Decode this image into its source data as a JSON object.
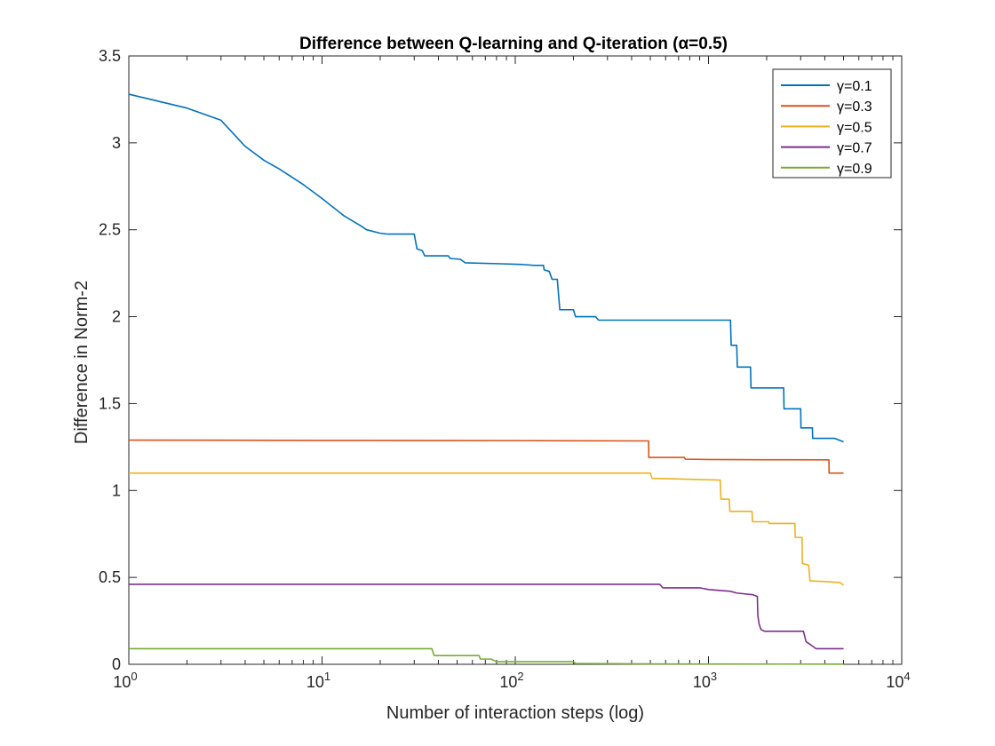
{
  "chart_data": {
    "type": "line",
    "title": "Difference between Q-learning and Q-iteration (α=0.5)",
    "xlabel": "Number of interaction steps (log)",
    "ylabel": "Difference in Norm-2",
    "xscale": "log",
    "xlim": [
      1,
      10000
    ],
    "ylim": [
      0,
      3.5
    ],
    "xticks": [
      {
        "value": 1,
        "base": "10",
        "exp": "0"
      },
      {
        "value": 10,
        "base": "10",
        "exp": "1"
      },
      {
        "value": 100,
        "base": "10",
        "exp": "2"
      },
      {
        "value": 1000,
        "base": "10",
        "exp": "3"
      },
      {
        "value": 10000,
        "base": "10",
        "exp": "4"
      }
    ],
    "yticks": [
      {
        "value": 0,
        "label": "0"
      },
      {
        "value": 0.5,
        "label": "0.5"
      },
      {
        "value": 1,
        "label": "1"
      },
      {
        "value": 1.5,
        "label": "1.5"
      },
      {
        "value": 2,
        "label": "2"
      },
      {
        "value": 2.5,
        "label": "2.5"
      },
      {
        "value": 3,
        "label": "3"
      },
      {
        "value": 3.5,
        "label": "3.5"
      }
    ],
    "grid": false,
    "box": true,
    "legend_position": "top-right",
    "series": [
      {
        "name": "γ=0.1",
        "color": "#0072BD",
        "step": false,
        "points": [
          [
            1,
            3.28
          ],
          [
            2,
            3.2
          ],
          [
            3,
            3.13
          ],
          [
            4,
            2.98
          ],
          [
            5,
            2.9
          ],
          [
            6,
            2.85
          ],
          [
            8,
            2.76
          ],
          [
            10,
            2.68
          ],
          [
            13,
            2.58
          ],
          [
            16,
            2.52
          ],
          [
            17,
            2.5
          ],
          [
            20,
            2.48
          ],
          [
            22,
            2.475
          ],
          [
            30,
            2.475
          ],
          [
            31,
            2.39
          ],
          [
            33,
            2.38
          ],
          [
            34,
            2.35
          ],
          [
            45,
            2.35
          ],
          [
            46,
            2.335
          ],
          [
            52,
            2.33
          ],
          [
            55,
            2.31
          ],
          [
            80,
            2.305
          ],
          [
            110,
            2.3
          ],
          [
            125,
            2.295
          ],
          [
            140,
            2.295
          ],
          [
            141,
            2.27
          ],
          [
            150,
            2.26
          ],
          [
            155,
            2.215
          ],
          [
            165,
            2.215
          ],
          [
            170,
            2.04
          ],
          [
            200,
            2.04
          ],
          [
            205,
            2.0
          ],
          [
            260,
            2.0
          ],
          [
            270,
            1.98
          ],
          [
            1300,
            1.98
          ],
          [
            1310,
            1.835
          ],
          [
            1400,
            1.835
          ],
          [
            1410,
            1.71
          ],
          [
            1650,
            1.71
          ],
          [
            1660,
            1.59
          ],
          [
            2450,
            1.59
          ],
          [
            2460,
            1.47
          ],
          [
            3000,
            1.47
          ],
          [
            3010,
            1.36
          ],
          [
            3450,
            1.36
          ],
          [
            3460,
            1.3
          ],
          [
            4500,
            1.3
          ],
          [
            5000,
            1.28
          ]
        ]
      },
      {
        "name": "γ=0.3",
        "color": "#D95319",
        "step": false,
        "points": [
          [
            1,
            1.29
          ],
          [
            10,
            1.288
          ],
          [
            100,
            1.287
          ],
          [
            490,
            1.285
          ],
          [
            491,
            1.19
          ],
          [
            750,
            1.19
          ],
          [
            760,
            1.18
          ],
          [
            1000,
            1.178
          ],
          [
            2000,
            1.177
          ],
          [
            4200,
            1.176
          ],
          [
            4210,
            1.1
          ],
          [
            5000,
            1.1
          ]
        ]
      },
      {
        "name": "γ=0.5",
        "color": "#EDB120",
        "step": false,
        "points": [
          [
            1,
            1.1
          ],
          [
            100,
            1.1
          ],
          [
            500,
            1.1
          ],
          [
            510,
            1.07
          ],
          [
            1150,
            1.06
          ],
          [
            1160,
            0.95
          ],
          [
            1280,
            0.95
          ],
          [
            1290,
            0.88
          ],
          [
            1680,
            0.88
          ],
          [
            1690,
            0.82
          ],
          [
            2050,
            0.82
          ],
          [
            2060,
            0.81
          ],
          [
            2800,
            0.81
          ],
          [
            2810,
            0.73
          ],
          [
            3050,
            0.73
          ],
          [
            3060,
            0.58
          ],
          [
            3300,
            0.57
          ],
          [
            3350,
            0.48
          ],
          [
            4200,
            0.475
          ],
          [
            4800,
            0.47
          ],
          [
            5000,
            0.455
          ]
        ]
      },
      {
        "name": "γ=0.7",
        "color": "#7E2F8E",
        "step": false,
        "points": [
          [
            1,
            0.46
          ],
          [
            100,
            0.46
          ],
          [
            560,
            0.46
          ],
          [
            580,
            0.44
          ],
          [
            900,
            0.44
          ],
          [
            1000,
            0.43
          ],
          [
            1300,
            0.42
          ],
          [
            1400,
            0.41
          ],
          [
            1700,
            0.4
          ],
          [
            1790,
            0.39
          ],
          [
            1800,
            0.28
          ],
          [
            1830,
            0.23
          ],
          [
            1870,
            0.2
          ],
          [
            1950,
            0.19
          ],
          [
            3100,
            0.19
          ],
          [
            3200,
            0.13
          ],
          [
            3400,
            0.11
          ],
          [
            3600,
            0.09
          ],
          [
            5000,
            0.09
          ]
        ]
      },
      {
        "name": "γ=0.9",
        "color": "#77AC30",
        "step": false,
        "points": [
          [
            1,
            0.09
          ],
          [
            37,
            0.09
          ],
          [
            38,
            0.05
          ],
          [
            65,
            0.05
          ],
          [
            66,
            0.03
          ],
          [
            75,
            0.03
          ],
          [
            80,
            0.015
          ],
          [
            200,
            0.015
          ],
          [
            205,
            0.005
          ],
          [
            500,
            0.002
          ],
          [
            5000,
            0.001
          ]
        ]
      }
    ]
  }
}
